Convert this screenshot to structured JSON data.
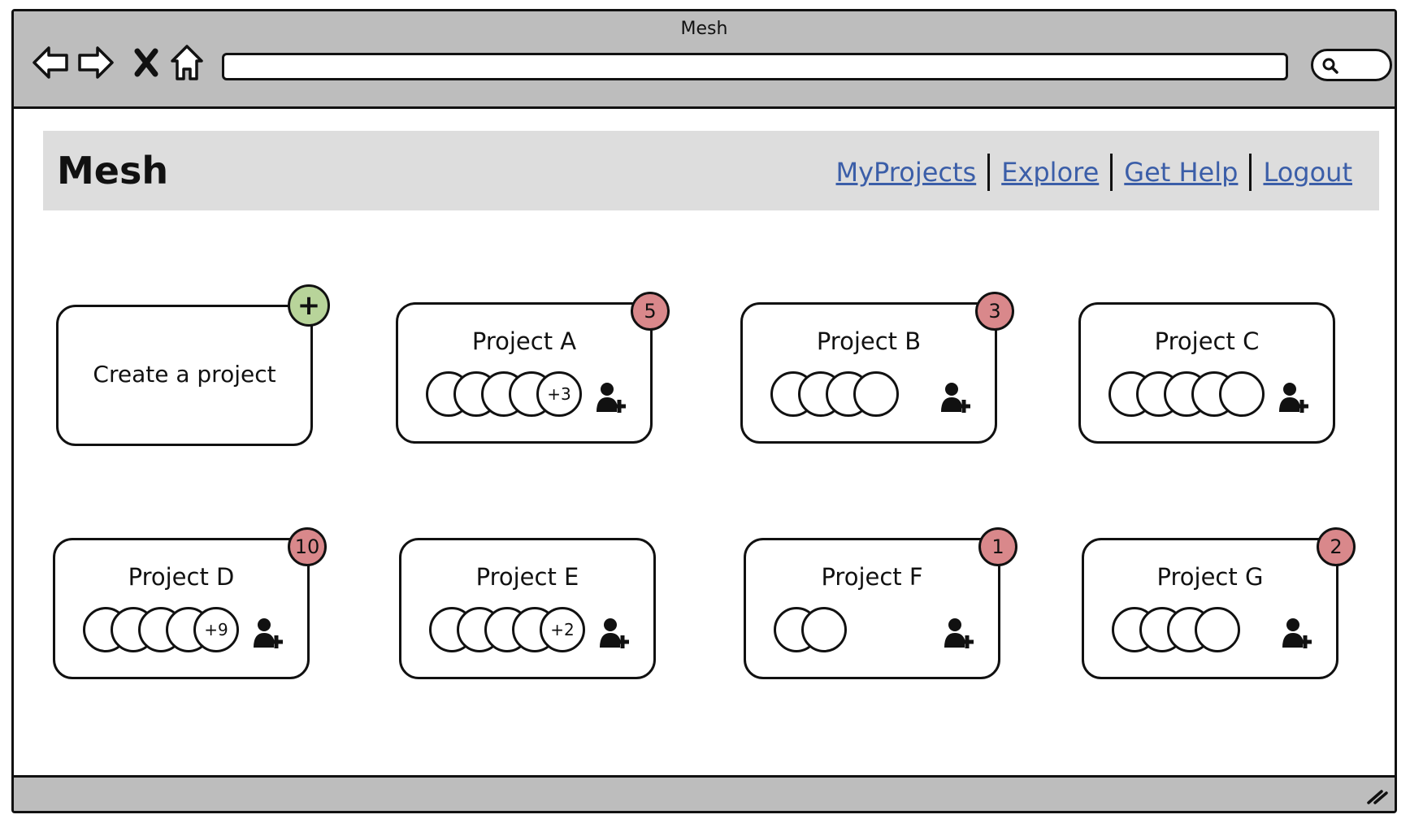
{
  "window": {
    "title": "Mesh",
    "address_value": "",
    "search_value": ""
  },
  "header": {
    "brand": "Mesh",
    "links": [
      "MyProjects",
      "Explore",
      "Get Help",
      "Logout"
    ]
  },
  "create_card": {
    "label": "Create a project",
    "icon": "plus-icon",
    "plus_symbol": "+"
  },
  "projects": [
    {
      "name": "Project A",
      "members_shown": 5,
      "overflow": "+3",
      "badge": "5"
    },
    {
      "name": "Project B",
      "members_shown": 4,
      "overflow": "",
      "badge": "3"
    },
    {
      "name": "Project C",
      "members_shown": 5,
      "overflow": "",
      "badge": ""
    },
    {
      "name": "Project D",
      "members_shown": 5,
      "overflow": "+9",
      "badge": "10"
    },
    {
      "name": "Project E",
      "members_shown": 5,
      "overflow": "+2",
      "badge": ""
    },
    {
      "name": "Project F",
      "members_shown": 2,
      "overflow": "",
      "badge": "1"
    },
    {
      "name": "Project G",
      "members_shown": 4,
      "overflow": "",
      "badge": "2"
    }
  ],
  "colors": {
    "chrome": "#bdbdbd",
    "header_bg": "#dddddd",
    "link": "#3b5ea8",
    "badge": "#d9888b",
    "create_badge": "#b8d49a"
  }
}
